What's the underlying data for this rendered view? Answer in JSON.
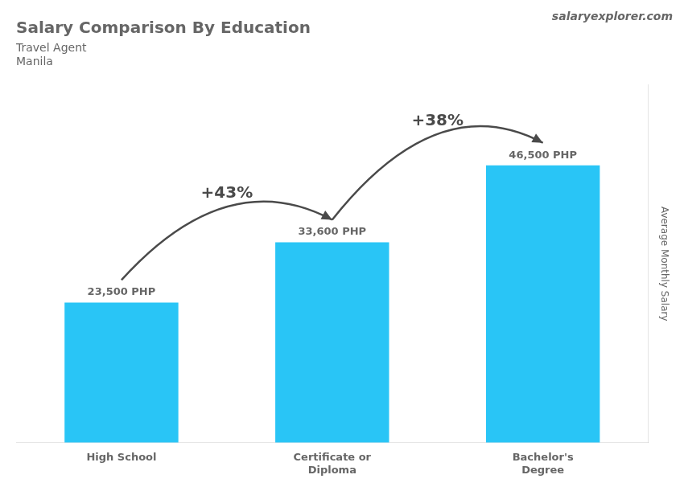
{
  "chart_data": {
    "type": "bar",
    "title": "Salary Comparison By Education",
    "subtitle": [
      "Travel Agent",
      "Manila"
    ],
    "ylabel": "Average Monthly Salary",
    "categories": [
      "High School",
      "Certificate or\nDiploma",
      "Bachelor's\nDegree"
    ],
    "values": [
      23500,
      33600,
      46500
    ],
    "value_labels": [
      "23,500 PHP",
      "33,600 PHP",
      "46,500 PHP"
    ],
    "data_labels": true,
    "annotations": [
      "+43%",
      "+38%",
      "salaryexplorer.com"
    ],
    "color": "#29c5f6",
    "ylim": [
      0,
      60000
    ],
    "grid": false,
    "tick_labels": "x"
  }
}
